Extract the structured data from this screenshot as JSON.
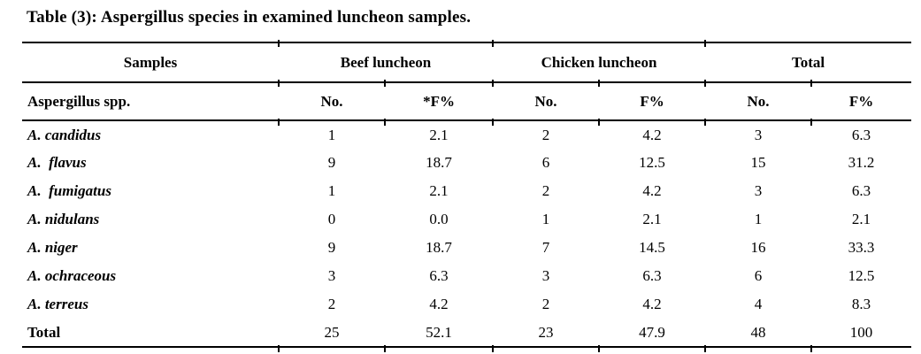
{
  "title": "Table (3): Aspergillus species in examined luncheon samples.",
  "table": {
    "group_headers": {
      "samples": "Samples",
      "beef": "Beef luncheon",
      "chicken": "Chicken luncheon",
      "total": "Total"
    },
    "sub_headers": {
      "species": "Aspergillus spp.",
      "beef_no": "No.",
      "beef_f": "*F%",
      "chicken_no": "No.",
      "chicken_f": "F%",
      "total_no": "No.",
      "total_f": "F%"
    },
    "rows": [
      {
        "species": "A. candidus",
        "beef_no": "1",
        "beef_f": "2.1",
        "chicken_no": "2",
        "chicken_f": "4.2",
        "total_no": "3",
        "total_f": "6.3"
      },
      {
        "species": "A.  flavus",
        "beef_no": "9",
        "beef_f": "18.7",
        "chicken_no": "6",
        "chicken_f": "12.5",
        "total_no": "15",
        "total_f": "31.2"
      },
      {
        "species": "A.  fumigatus",
        "beef_no": "1",
        "beef_f": "2.1",
        "chicken_no": "2",
        "chicken_f": "4.2",
        "total_no": "3",
        "total_f": "6.3"
      },
      {
        "species": "A. nidulans",
        "beef_no": "0",
        "beef_f": "0.0",
        "chicken_no": "1",
        "chicken_f": "2.1",
        "total_no": "1",
        "total_f": "2.1"
      },
      {
        "species": "A. niger",
        "beef_no": "9",
        "beef_f": "18.7",
        "chicken_no": "7",
        "chicken_f": "14.5",
        "total_no": "16",
        "total_f": "33.3"
      },
      {
        "species": "A. ochraceous",
        "beef_no": "3",
        "beef_f": "6.3",
        "chicken_no": "3",
        "chicken_f": "6.3",
        "total_no": "6",
        "total_f": "12.5"
      },
      {
        "species": "A. terreus",
        "beef_no": "2",
        "beef_f": "4.2",
        "chicken_no": "2",
        "chicken_f": "4.2",
        "total_no": "4",
        "total_f": "8.3"
      }
    ],
    "footer": {
      "label": "Total",
      "beef_no": "25",
      "beef_f": "52.1",
      "chicken_no": "23",
      "chicken_f": "47.9",
      "total_no": "48",
      "total_f": "100"
    }
  },
  "colors": {
    "background": "#ffffff",
    "text": "#000000",
    "rule": "#000000"
  }
}
